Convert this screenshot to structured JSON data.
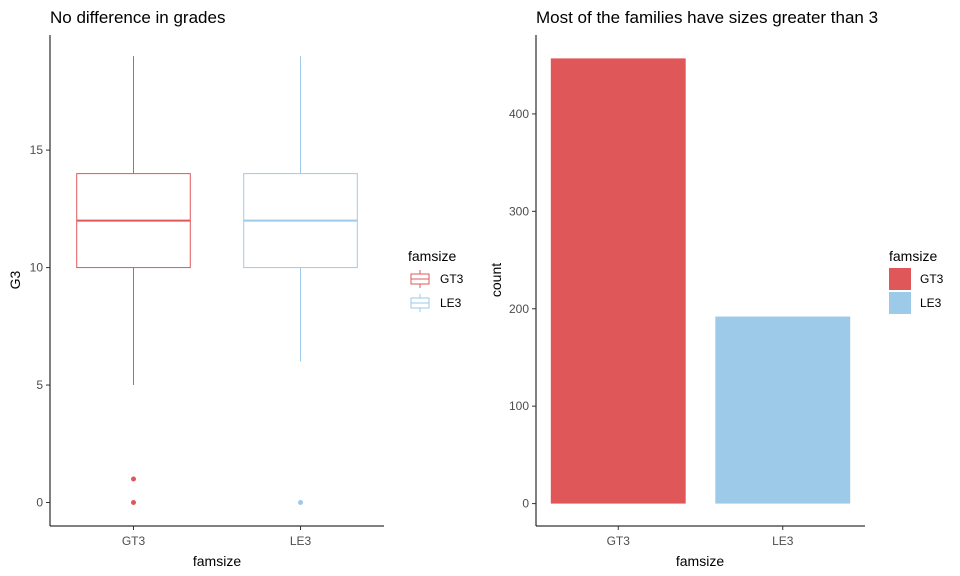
{
  "colors": {
    "GT3": "#e05759",
    "LE3": "#9ecae9"
  },
  "chart_data": [
    {
      "type": "box",
      "title": "No difference in grades",
      "xlabel": "famsize",
      "ylabel": "G3",
      "categories": [
        "GT3",
        "LE3"
      ],
      "ylim": [
        -1,
        19.9
      ],
      "yticks": [
        0,
        5,
        10,
        15
      ],
      "boxes": [
        {
          "name": "GT3",
          "min": 5,
          "q1": 10,
          "median": 12,
          "q3": 14,
          "max": 19,
          "outliers": [
            0,
            1
          ]
        },
        {
          "name": "LE3",
          "min": 6,
          "q1": 10,
          "median": 12,
          "q3": 14,
          "max": 19,
          "outliers": [
            0
          ]
        }
      ],
      "legend": {
        "title": "famsize",
        "entries": [
          "GT3",
          "LE3"
        ],
        "position": "right"
      },
      "grid": false
    },
    {
      "type": "bar",
      "title": "Most of the families have sizes greater than 3",
      "xlabel": "famsize",
      "ylabel": "count",
      "categories": [
        "GT3",
        "LE3"
      ],
      "values": [
        457,
        192
      ],
      "ylim": [
        -23,
        481
      ],
      "yticks": [
        0,
        100,
        200,
        300,
        400
      ],
      "legend": {
        "title": "famsize",
        "entries": [
          "GT3",
          "LE3"
        ],
        "position": "right"
      },
      "grid": false
    }
  ]
}
